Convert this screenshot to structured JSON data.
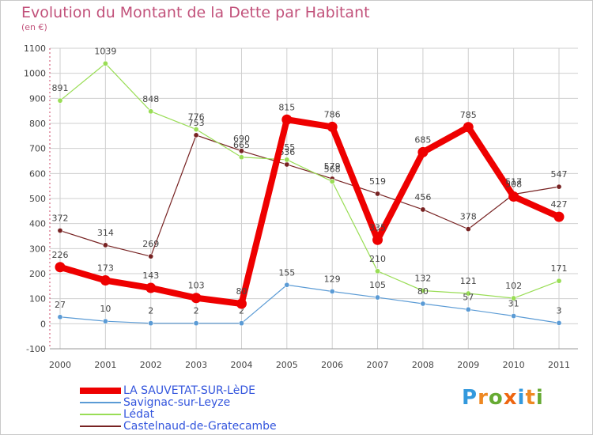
{
  "header": {
    "title": "Evolution du Montant de la Dette par Habitant",
    "subtitle": "(en €)"
  },
  "logo": {
    "text": "Proxiti"
  },
  "colors": {
    "title": "#c2527b",
    "grid": "#cfcfcf",
    "axis_text": "#444444",
    "legend_text": "#3355dd"
  },
  "chart_data": {
    "type": "line",
    "x": [
      "2000",
      "2001",
      "2002",
      "2003",
      "2004",
      "2005",
      "2006",
      "2007",
      "2008",
      "2009",
      "2010",
      "2011"
    ],
    "ylim": [
      -100,
      1100
    ],
    "yticks": [
      -100,
      0,
      100,
      200,
      300,
      400,
      500,
      600,
      700,
      800,
      900,
      1000,
      1100
    ],
    "grid": true,
    "legend_position": "bottom",
    "series": [
      {
        "name": "LA SAUVETAT-SUR-LèDE",
        "color": "#ee0000",
        "values": [
          226,
          173,
          143,
          103,
          80,
          815,
          786,
          335,
          685,
          785,
          508,
          427
        ],
        "labels": [
          "226",
          "173",
          "143",
          "103",
          "80",
          "815",
          "786",
          "335",
          "685",
          "785",
          "508",
          "427"
        ]
      },
      {
        "name": "Savignac-sur-Leyze",
        "color": "#5b9bd5",
        "values": [
          27,
          10,
          2,
          2,
          2,
          155,
          129,
          105,
          80,
          57,
          31,
          3
        ],
        "labels": [
          "27",
          "10",
          "2",
          "2",
          "2",
          "155",
          "129",
          "105",
          "80",
          "57",
          "31",
          "3"
        ]
      },
      {
        "name": "Lédat",
        "color": "#99dd55",
        "values": [
          891,
          1039,
          848,
          776,
          665,
          655,
          568,
          210,
          132,
          121,
          102,
          171
        ],
        "labels": [
          "891",
          "1039",
          "848",
          "776",
          "665",
          "655",
          "568",
          "210",
          "132",
          "121",
          "102",
          "171"
        ]
      },
      {
        "name": "Castelnaud-de-Gratecambe",
        "color": "#772222",
        "values": [
          372,
          314,
          269,
          753,
          690,
          636,
          579,
          519,
          456,
          378,
          517,
          547
        ],
        "labels": [
          "372",
          "314",
          "269",
          "753",
          "690",
          "636",
          "579",
          "519",
          "456",
          "378",
          "517",
          "547"
        ]
      }
    ]
  }
}
